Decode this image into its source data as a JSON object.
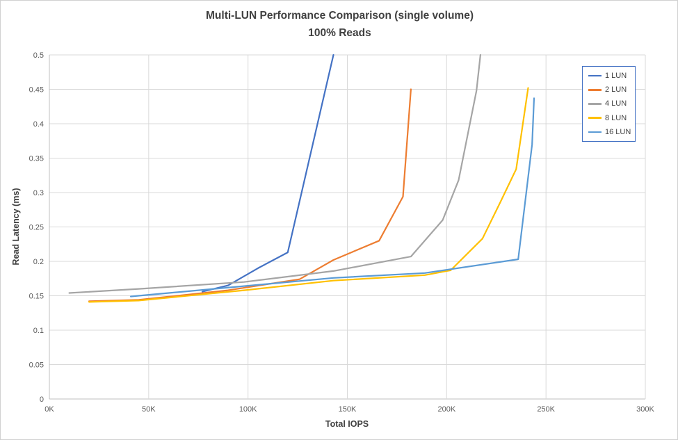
{
  "chart_data": {
    "type": "line",
    "title": "Multi-LUN Performance Comparison (single volume)",
    "subtitle": "100% Reads",
    "xlabel": "Total IOPS",
    "ylabel": "Read Latency (ms)",
    "x_unit": "thousand IOPS (K)",
    "xlim": [
      0,
      300
    ],
    "ylim": [
      0,
      0.5
    ],
    "grid": true,
    "legend_position": "top-right",
    "x_tick_values": [
      0,
      50,
      100,
      150,
      200,
      250,
      300
    ],
    "x_tick_labels": [
      "0K",
      "50K",
      "100K",
      "150K",
      "200K",
      "250K",
      "300K"
    ],
    "y_tick_values": [
      0,
      0.05,
      0.1,
      0.15,
      0.2,
      0.25,
      0.3,
      0.35,
      0.4,
      0.45,
      0.5
    ],
    "y_tick_labels": [
      "0",
      "0.05",
      "0.1",
      "0.15",
      "0.2",
      "0.25",
      "0.3",
      "0.35",
      "0.4",
      "0.45",
      "0.5"
    ],
    "series": [
      {
        "name": "1 LUN",
        "color": "#4472C4",
        "points": [
          [
            77,
            0.156
          ],
          [
            90,
            0.165
          ],
          [
            105,
            0.19
          ],
          [
            120,
            0.213
          ],
          [
            143,
            0.5
          ]
        ]
      },
      {
        "name": "2 LUN",
        "color": "#ED7D31",
        "points": [
          [
            20,
            0.142
          ],
          [
            45,
            0.144
          ],
          [
            90,
            0.158
          ],
          [
            126,
            0.174
          ],
          [
            143,
            0.202
          ],
          [
            166,
            0.23
          ],
          [
            178,
            0.294
          ],
          [
            182,
            0.45
          ]
        ]
      },
      {
        "name": "4 LUN",
        "color": "#A5A5A5",
        "points": [
          [
            10,
            0.154
          ],
          [
            45,
            0.16
          ],
          [
            98,
            0.17
          ],
          [
            143,
            0.186
          ],
          [
            182,
            0.207
          ],
          [
            198,
            0.26
          ],
          [
            206,
            0.318
          ],
          [
            215,
            0.448
          ],
          [
            217,
            0.5
          ]
        ]
      },
      {
        "name": "8 LUN",
        "color": "#FFC000",
        "points": [
          [
            20,
            0.141
          ],
          [
            45,
            0.143
          ],
          [
            98,
            0.158
          ],
          [
            143,
            0.172
          ],
          [
            189,
            0.18
          ],
          [
            202,
            0.187
          ],
          [
            218,
            0.233
          ],
          [
            227,
            0.286
          ],
          [
            235,
            0.334
          ],
          [
            241,
            0.452
          ]
        ]
      },
      {
        "name": "16 LUN",
        "color": "#5B9BD5",
        "points": [
          [
            41,
            0.149
          ],
          [
            98,
            0.164
          ],
          [
            143,
            0.176
          ],
          [
            189,
            0.183
          ],
          [
            236,
            0.203
          ],
          [
            243,
            0.37
          ],
          [
            244,
            0.437
          ]
        ]
      }
    ]
  },
  "colors": {
    "gridline": "#D9D9D9",
    "axis_line": "#BFBFBF",
    "tick_text": "#595959",
    "title_text": "#404040",
    "legend_border": "#4472C4",
    "background": "#FFFFFF"
  }
}
